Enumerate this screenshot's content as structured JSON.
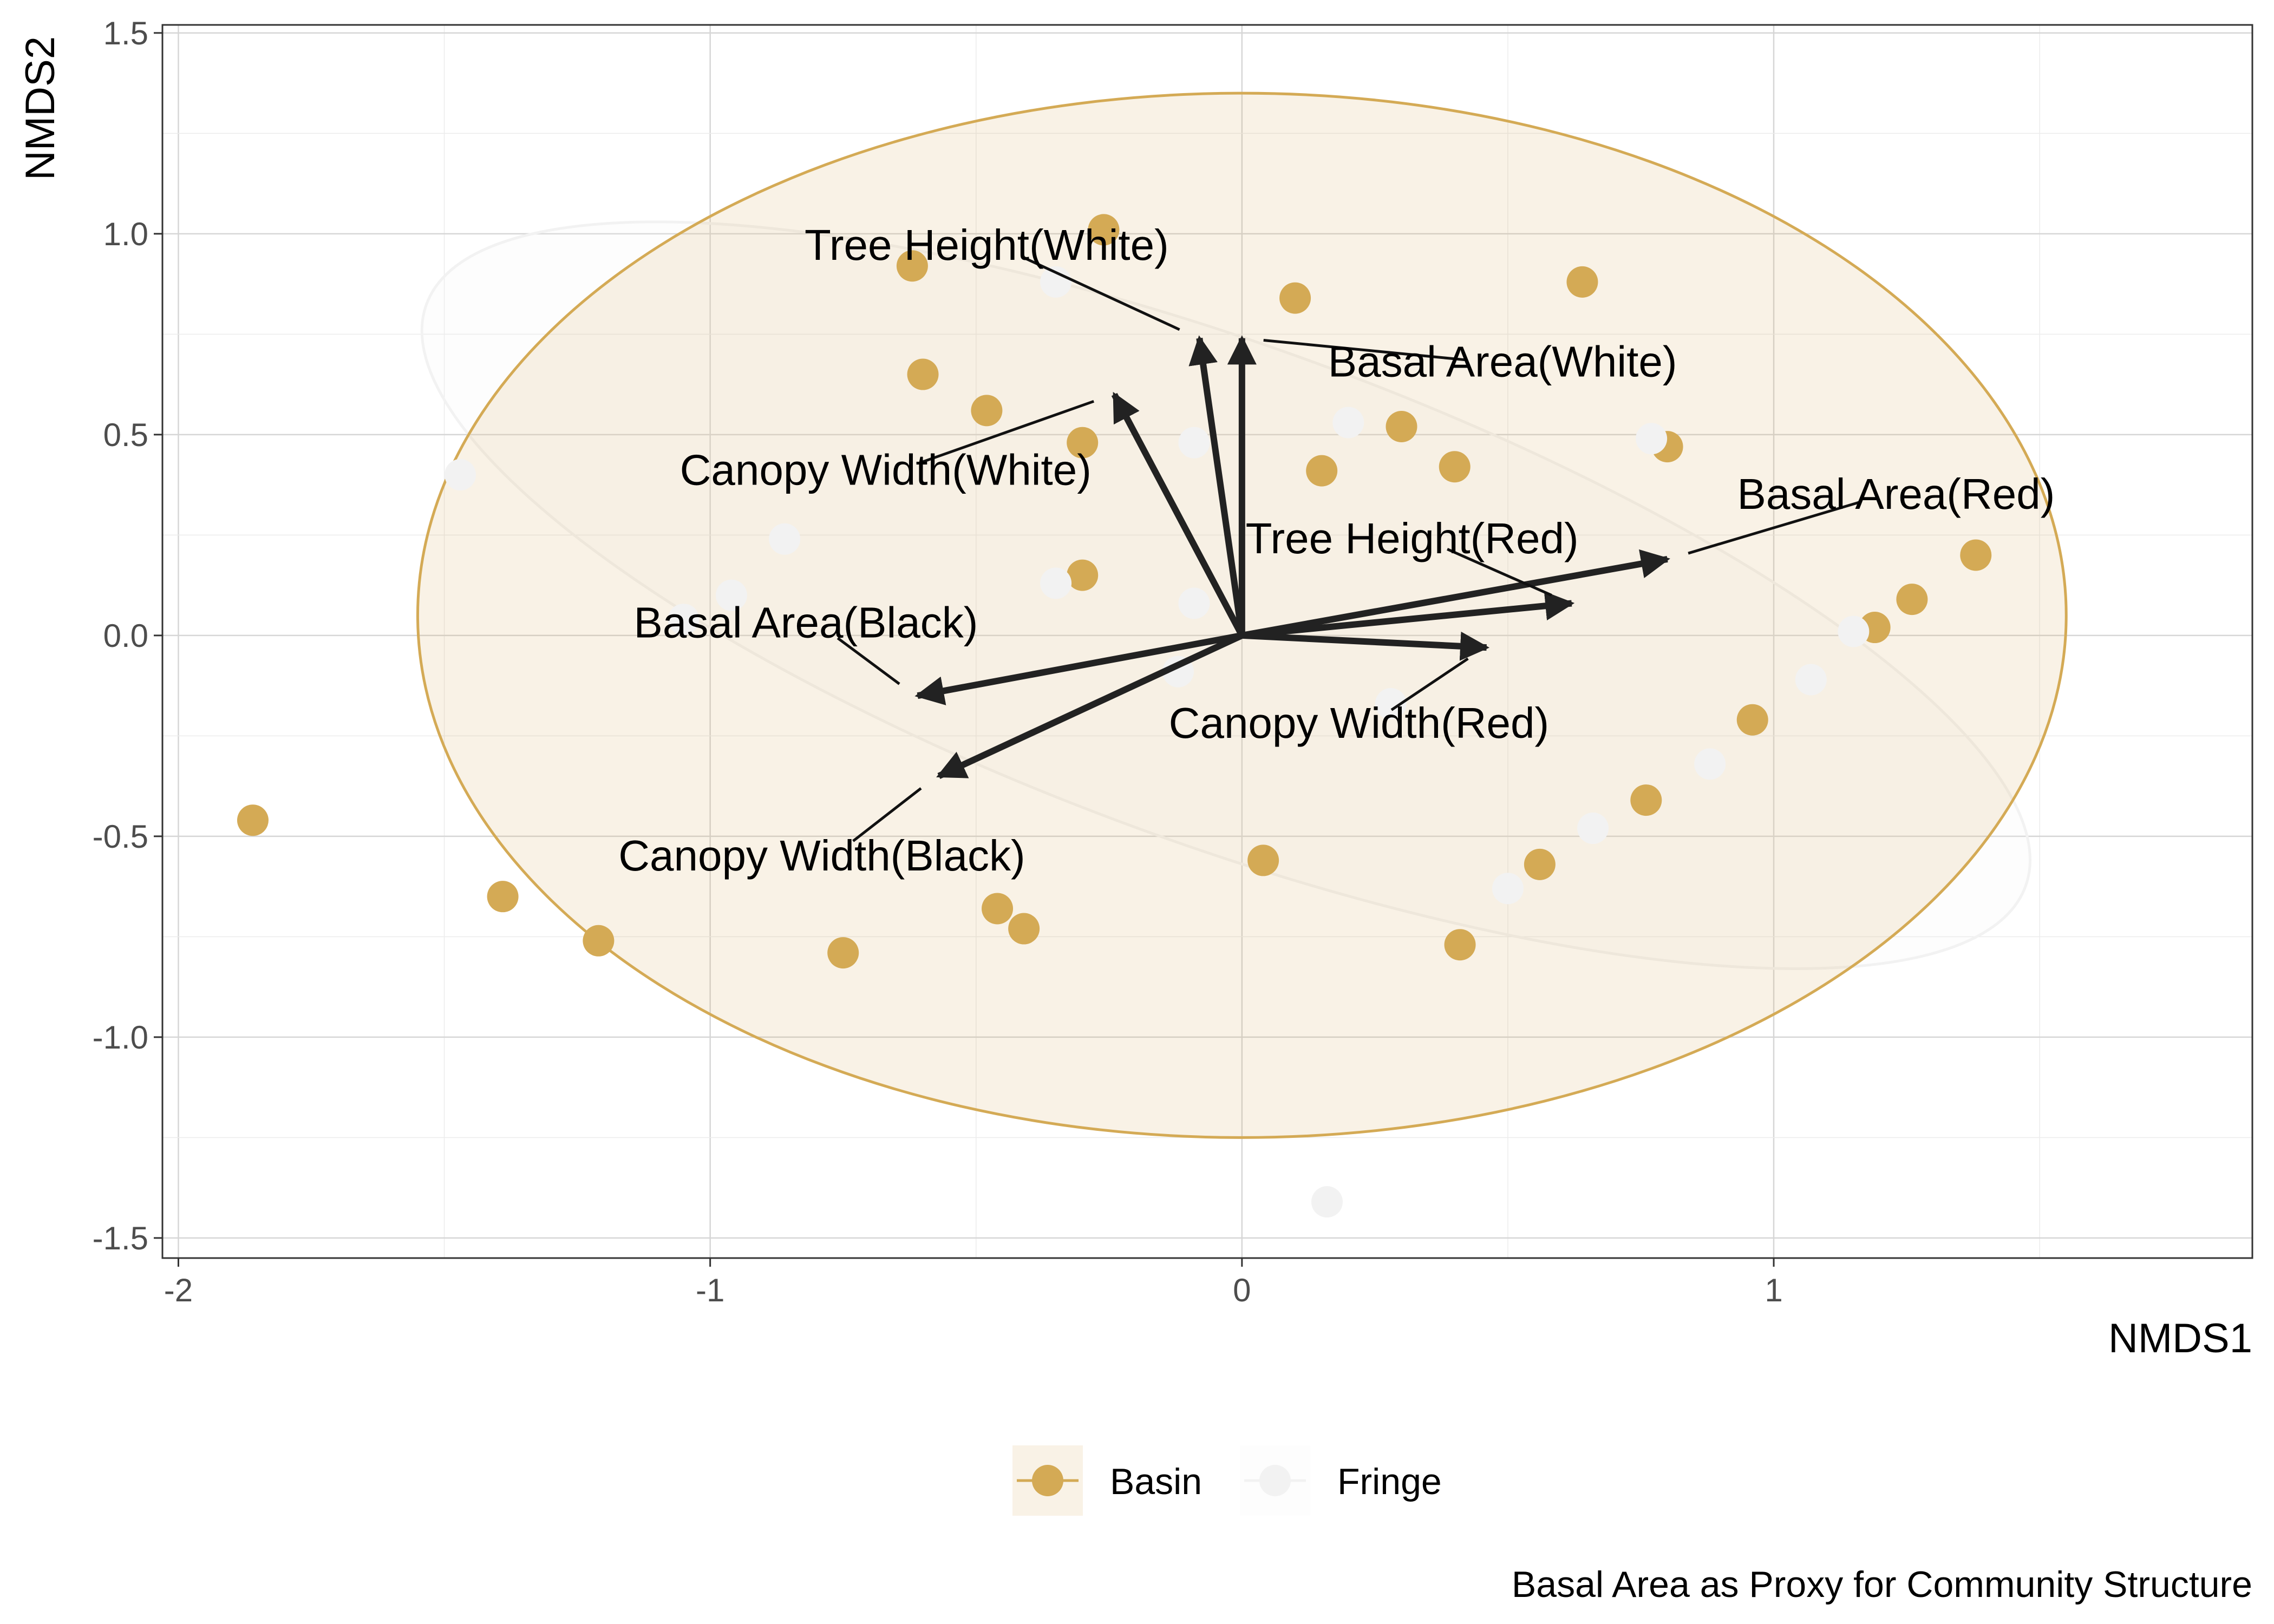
{
  "chart_data": {
    "type": "scatter",
    "subtype": "NMDS ordination biplot with group ellipses and vector loadings",
    "caption": "Basal Area as Proxy for Community Structure",
    "xlabel": "NMDS1",
    "ylabel": "NMDS2",
    "xlim": [
      -2.03,
      1.9
    ],
    "ylim": [
      -1.55,
      1.52
    ],
    "x_ticks": [
      -2,
      -1,
      0,
      1
    ],
    "x_tick_labels": [
      "-2",
      "-1",
      "0",
      "1"
    ],
    "y_ticks": [
      -1.5,
      -1.0,
      -0.5,
      0.0,
      0.5,
      1.0,
      1.5
    ],
    "y_tick_labels": [
      "-1.5",
      "-1.0",
      "-0.5",
      "0.0",
      "0.5",
      "1.0",
      "1.5"
    ],
    "grid": true,
    "legend_position": "bottom",
    "series": [
      {
        "name": "Basin",
        "color": "#D4AA55",
        "ellipse": {
          "cx": 0.0,
          "cy": 0.05,
          "rx": 1.55,
          "ry": 1.3,
          "rotation_deg": 0
        },
        "points": [
          [
            -1.86,
            -0.46
          ],
          [
            -1.39,
            -0.65
          ],
          [
            -1.21,
            -0.76
          ],
          [
            -0.75,
            -0.79
          ],
          [
            -0.46,
            -0.68
          ],
          [
            -0.41,
            -0.73
          ],
          [
            0.04,
            -0.56
          ],
          [
            0.41,
            -0.77
          ],
          [
            0.56,
            -0.57
          ],
          [
            0.76,
            -0.41
          ],
          [
            0.96,
            -0.21
          ],
          [
            1.19,
            0.02
          ],
          [
            1.26,
            0.09
          ],
          [
            1.38,
            0.2
          ],
          [
            -0.62,
            0.92
          ],
          [
            -0.26,
            1.01
          ],
          [
            0.1,
            0.84
          ],
          [
            0.64,
            0.88
          ],
          [
            -0.6,
            0.65
          ],
          [
            -0.48,
            0.56
          ],
          [
            -0.3,
            0.48
          ],
          [
            0.15,
            0.41
          ],
          [
            0.3,
            0.52
          ],
          [
            0.4,
            0.42
          ],
          [
            0.8,
            0.47
          ],
          [
            -0.3,
            0.15
          ]
        ]
      },
      {
        "name": "Fringe",
        "color": "#F2F2F2",
        "ellipse": {
          "cx": -0.03,
          "cy": 0.1,
          "rx": 1.6,
          "ry": 0.62,
          "rotation_deg": -20
        },
        "points": [
          [
            -1.47,
            0.4
          ],
          [
            -1.05,
            0.04
          ],
          [
            -0.96,
            0.1
          ],
          [
            -0.86,
            0.24
          ],
          [
            -0.35,
            0.88
          ],
          [
            -0.35,
            0.13
          ],
          [
            -0.09,
            0.48
          ],
          [
            -0.09,
            0.08
          ],
          [
            0.2,
            0.53
          ],
          [
            0.16,
            -1.41
          ],
          [
            -0.12,
            -0.09
          ],
          [
            0.5,
            -0.63
          ],
          [
            0.66,
            -0.48
          ],
          [
            0.88,
            -0.32
          ],
          [
            1.07,
            -0.11
          ],
          [
            1.15,
            0.01
          ],
          [
            0.77,
            0.49
          ],
          [
            0.28,
            -0.17
          ]
        ]
      }
    ],
    "vectors": [
      {
        "label": "Tree Height(White)",
        "x": -0.08,
        "y": 0.74,
        "label_x": -0.48,
        "label_y": 0.97
      },
      {
        "label": "Basal Area(White)",
        "x": 0.0,
        "y": 0.74,
        "label_x": 0.49,
        "label_y": 0.68
      },
      {
        "label": "Canopy Width(White)",
        "x": -0.24,
        "y": 0.6,
        "label_x": -0.67,
        "label_y": 0.41
      },
      {
        "label": "Basal Area(Red)",
        "x": 0.8,
        "y": 0.19,
        "label_x": 1.23,
        "label_y": 0.35
      },
      {
        "label": "Tree Height(Red)",
        "x": 0.62,
        "y": 0.08,
        "label_x": 0.32,
        "label_y": 0.24
      },
      {
        "label": "Canopy Width(Red)",
        "x": 0.46,
        "y": -0.03,
        "label_x": 0.22,
        "label_y": -0.22
      },
      {
        "label": "Basal Area(Black)",
        "x": -0.61,
        "y": -0.15,
        "label_x": -0.82,
        "label_y": 0.03
      },
      {
        "label": "Canopy Width(Black)",
        "x": -0.57,
        "y": -0.35,
        "label_x": -0.79,
        "label_y": -0.55
      }
    ]
  }
}
